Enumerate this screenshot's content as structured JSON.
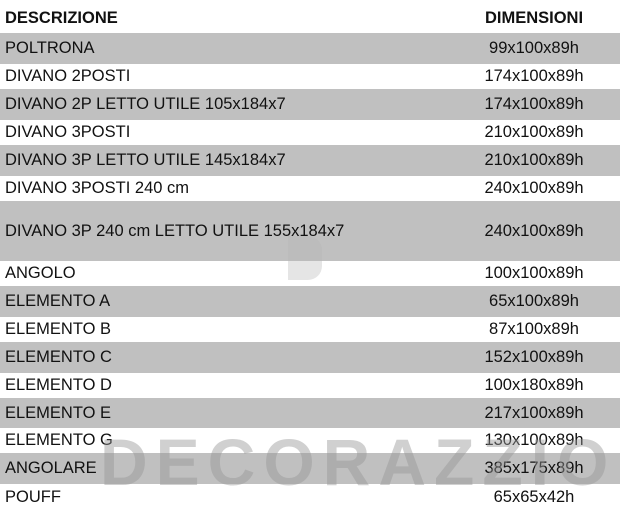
{
  "header": {
    "description": "DESCRIZIONE",
    "dimensions": "DIMENSIONI"
  },
  "rows": [
    {
      "description": "POLTRONA",
      "dimensions": "99x100x89h"
    },
    {
      "description": "DIVANO 2POSTI",
      "dimensions": "174x100x89h"
    },
    {
      "description": "DIVANO 2P LETTO UTILE 105x184x7",
      "dimensions": "174x100x89h"
    },
    {
      "description": "DIVANO 3POSTI",
      "dimensions": "210x100x89h"
    },
    {
      "description": "DIVANO 3P LETTO UTILE 145x184x7",
      "dimensions": "210x100x89h"
    },
    {
      "description": "DIVANO 3POSTI 240 cm",
      "dimensions": "240x100x89h"
    },
    {
      "description": "DIVANO 3P 240 cm LETTO UTILE 155x184x7",
      "dimensions": "240x100x89h"
    },
    {
      "description": "ANGOLO",
      "dimensions": "100x100x89h"
    },
    {
      "description": "ELEMENTO A",
      "dimensions": "65x100x89h"
    },
    {
      "description": "ELEMENTO B",
      "dimensions": "87x100x89h"
    },
    {
      "description": "ELEMENTO C",
      "dimensions": "152x100x89h"
    },
    {
      "description": "ELEMENTO D",
      "dimensions": "100x180x89h"
    },
    {
      "description": "ELEMENTO E",
      "dimensions": "217x100x89h"
    },
    {
      "description": "ELEMENTO G",
      "dimensions": "130x100x89h"
    },
    {
      "description": "ANGOLARE",
      "dimensions": "385x175x89h"
    },
    {
      "description": "POUFF",
      "dimensions": "65x65x42h"
    }
  ],
  "watermark": "DECORAZZIO",
  "colors": {
    "stripe": "#c0c0c0",
    "text": "#111111"
  }
}
